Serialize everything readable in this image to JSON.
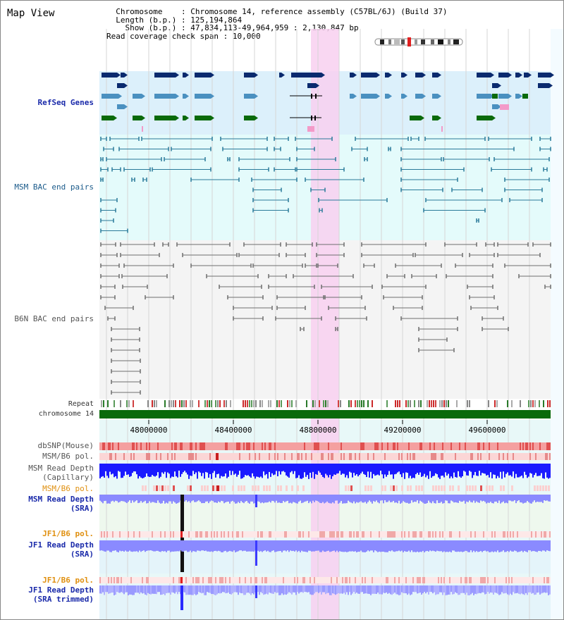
{
  "window": {
    "title": "Map View"
  },
  "header": {
    "chromosome_label": "Chromosome",
    "chromosome_value": "Chromosome 14, reference assembly (C57BL/6J) (Build 37)",
    "length_label": "Length (b.p.)",
    "length_value": "125,194,864",
    "show_label": "Show (b.p.)",
    "show_value": "47,834,113-49,964,959 : 2,130,847 bp",
    "coverage_label": "Read coverage check span",
    "coverage_value": "10,000"
  },
  "tracks": {
    "refseq": "RefSeq Genes",
    "msm_bac": "MSM BAC end pairs",
    "b6n_bac": "B6N BAC end pairs",
    "repeat": "Repeat",
    "chromosome": "chromosome 14",
    "dbsnp": "dbSNP(Mouse)",
    "msm_b6_pol_1": "MSM/B6 pol.",
    "msm_read_depth_cap_1": "MSM Read Depth",
    "msm_read_depth_cap_2": "(Capillary)",
    "msm_b6_pol_2": "MSM/B6 pol.",
    "msm_read_depth_sra_1": "MSM Read Depth",
    "msm_read_depth_sra_2": "(SRA)",
    "jf1_b6_pol_1": "JF1/B6 pol.",
    "jf1_read_depth_sra_1": "JF1 Read Depth",
    "jf1_read_depth_sra_2": "(SRA)",
    "jf1_b6_pol_2": "JF1/B6 pol.",
    "jf1_read_depth_trim_1": "JF1 Read Depth",
    "jf1_read_depth_trim_2": "(SRA trimmed)"
  },
  "axis": {
    "ticks": [
      "48000000",
      "48400000",
      "48800000",
      "49200000",
      "49600000"
    ]
  },
  "colors": {
    "refseq_bg": "#dcf0fb",
    "msm_bac_bg": "#e4fbfb",
    "b6n_bac_bg": "#f4f4f4",
    "highlight": "#f8d0f0",
    "gene_navy": "#0a2a6e",
    "gene_blue": "#4a90c0",
    "gene_green": "#0a6a0a",
    "gene_pink": "#f39ac8",
    "msm_pair": "#2a7a9a",
    "b6n_pair": "#6e6e6e",
    "chromosome_bar": "#0a6a0a",
    "dbsnp": "#f07a7a",
    "depth_blue": "#1a1aff",
    "depth_light": "#8a8aff",
    "label_blue": "#1a2aaa",
    "label_teal": "#1a5a8a",
    "label_orange": "#e09010",
    "label_gray": "#555555"
  }
}
